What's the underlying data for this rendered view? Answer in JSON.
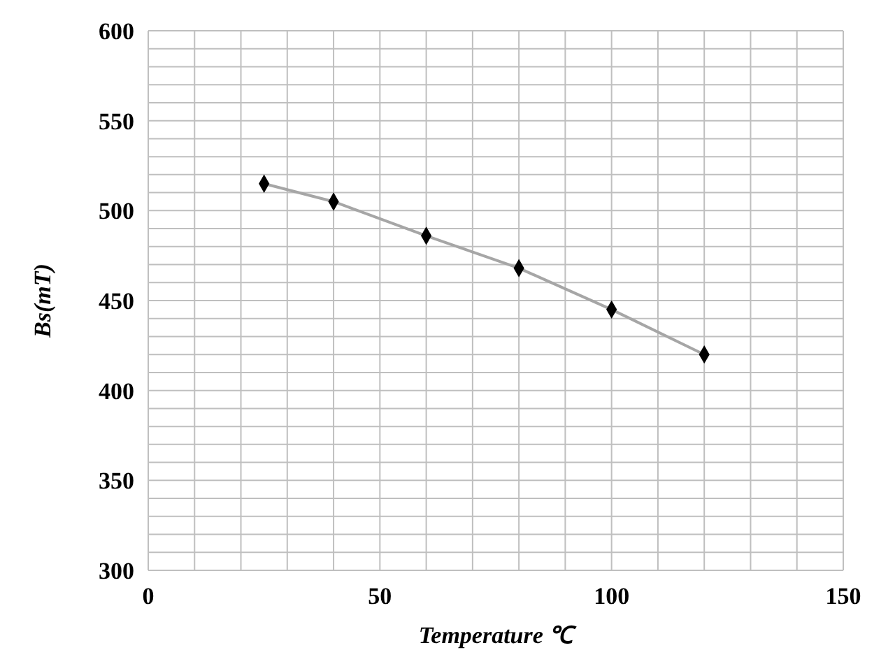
{
  "chart_data": {
    "type": "line",
    "xlabel": "Temperature ℃",
    "ylabel": "Bs(mT)",
    "x": [
      25,
      40,
      60,
      80,
      100,
      120
    ],
    "series": [
      {
        "color": "#a6a6a6",
        "values": [
          515,
          505,
          486,
          468,
          445,
          420
        ]
      }
    ],
    "marker": "diamond",
    "grid": true,
    "xlim": [
      0,
      150
    ],
    "ylim": [
      300,
      600
    ],
    "xticks": [
      0,
      {
        "value": 10,
        "label": null
      },
      {
        "value": 20,
        "label": null
      },
      {
        "value": 30,
        "label": null
      },
      {
        "value": 40,
        "label": null
      },
      50,
      {
        "value": 60,
        "label": null
      },
      {
        "value": 70,
        "label": null
      },
      {
        "value": 80,
        "label": null
      },
      {
        "value": 90,
        "label": null
      },
      100,
      {
        "value": 110,
        "label": null
      },
      {
        "value": 120,
        "label": null
      },
      {
        "value": 130,
        "label": null
      },
      {
        "value": 140,
        "label": null
      },
      150
    ],
    "yticks": [
      300,
      {
        "value": 310,
        "label": null
      },
      {
        "value": 320,
        "label": null
      },
      {
        "value": 330,
        "label": null
      },
      {
        "value": 340,
        "label": null
      },
      350,
      {
        "value": 360,
        "label": null
      },
      {
        "value": 370,
        "label": null
      },
      {
        "value": 380,
        "label": null
      },
      {
        "value": 390,
        "label": null
      },
      400,
      {
        "value": 410,
        "label": null
      },
      {
        "value": 420,
        "label": null
      },
      {
        "value": 430,
        "label": null
      },
      {
        "value": 440,
        "label": null
      },
      450,
      {
        "value": 460,
        "label": null
      },
      {
        "value": 470,
        "label": null
      },
      {
        "value": 480,
        "label": null
      },
      {
        "value": 490,
        "label": null
      },
      500,
      {
        "value": 510,
        "label": null
      },
      {
        "value": 520,
        "label": null
      },
      {
        "value": 530,
        "label": null
      },
      {
        "value": 540,
        "label": null
      },
      550,
      {
        "value": 560,
        "label": null
      },
      {
        "value": 570,
        "label": null
      },
      {
        "value": 580,
        "label": null
      },
      {
        "value": 590,
        "label": null
      },
      600
    ]
  }
}
